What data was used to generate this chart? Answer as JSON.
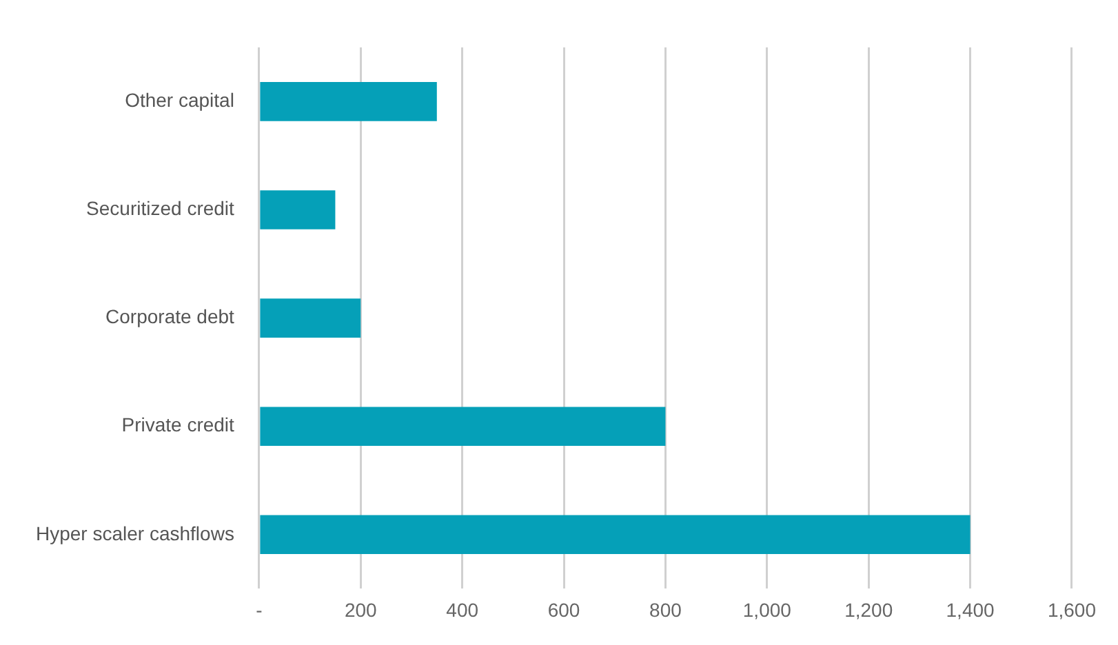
{
  "chart_data": {
    "type": "bar",
    "orientation": "horizontal",
    "categories": [
      "Other capital",
      "Securitized credit",
      "Corporate debt",
      "Private credit",
      "Hyper scaler cashflows"
    ],
    "values": [
      350,
      150,
      200,
      800,
      1400
    ],
    "color": "#05a0b8",
    "xlim": [
      0,
      1600
    ],
    "xticks": [
      {
        "value": 0,
        "label": "-"
      },
      200,
      400,
      600,
      800,
      {
        "value": 1000,
        "label": "1,000"
      },
      {
        "value": 1200,
        "label": "1,200"
      },
      {
        "value": 1400,
        "label": "1,400"
      },
      {
        "value": 1600,
        "label": "1,600"
      }
    ],
    "grid": "x"
  }
}
